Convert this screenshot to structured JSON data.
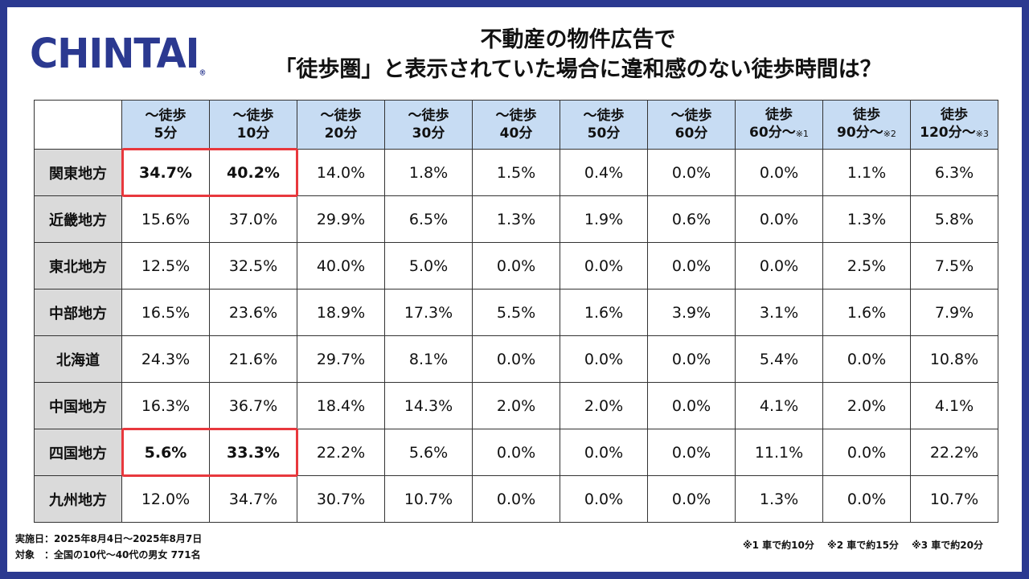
{
  "brand": {
    "logo_text": "CHINTAI",
    "logo_mark": "®",
    "color": "#2b3990"
  },
  "title": {
    "line1": "不動産の物件広告で",
    "line2": "「徒歩圏」と表示されていた場合に違和感のない徒歩時間は？"
  },
  "accent_colors": {
    "header_bg": "#c7dcf3",
    "region_bg": "#dadada",
    "highlight": "#e8383d"
  },
  "chart_data": {
    "type": "table",
    "columns": [
      {
        "line1": "〜徒歩",
        "line2": "5分",
        "note": ""
      },
      {
        "line1": "〜徒歩",
        "line2": "10分",
        "note": ""
      },
      {
        "line1": "〜徒歩",
        "line2": "20分",
        "note": ""
      },
      {
        "line1": "〜徒歩",
        "line2": "30分",
        "note": ""
      },
      {
        "line1": "〜徒歩",
        "line2": "40分",
        "note": ""
      },
      {
        "line1": "〜徒歩",
        "line2": "50分",
        "note": ""
      },
      {
        "line1": "〜徒歩",
        "line2": "60分",
        "note": ""
      },
      {
        "line1": "徒歩",
        "line2": "60分〜",
        "note": "※1"
      },
      {
        "line1": "徒歩",
        "line2": "90分〜",
        "note": "※2"
      },
      {
        "line1": "徒歩",
        "line2": "120分〜",
        "note": "※3"
      }
    ],
    "rows": [
      {
        "region": "関東地方",
        "values": [
          "34.7%",
          "40.2%",
          "14.0%",
          "1.8%",
          "1.5%",
          "0.4%",
          "0.0%",
          "0.0%",
          "1.1%",
          "6.3%"
        ],
        "highlight": [
          0,
          1
        ]
      },
      {
        "region": "近畿地方",
        "values": [
          "15.6%",
          "37.0%",
          "29.9%",
          "6.5%",
          "1.3%",
          "1.9%",
          "0.6%",
          "0.0%",
          "1.3%",
          "5.8%"
        ],
        "highlight": []
      },
      {
        "region": "東北地方",
        "values": [
          "12.5%",
          "32.5%",
          "40.0%",
          "5.0%",
          "0.0%",
          "0.0%",
          "0.0%",
          "0.0%",
          "2.5%",
          "7.5%"
        ],
        "highlight": []
      },
      {
        "region": "中部地方",
        "values": [
          "16.5%",
          "23.6%",
          "18.9%",
          "17.3%",
          "5.5%",
          "1.6%",
          "3.9%",
          "3.1%",
          "1.6%",
          "7.9%"
        ],
        "highlight": []
      },
      {
        "region": "北海道",
        "values": [
          "24.3%",
          "21.6%",
          "29.7%",
          "8.1%",
          "0.0%",
          "0.0%",
          "0.0%",
          "5.4%",
          "0.0%",
          "10.8%"
        ],
        "highlight": []
      },
      {
        "region": "中国地方",
        "values": [
          "16.3%",
          "36.7%",
          "18.4%",
          "14.3%",
          "2.0%",
          "2.0%",
          "0.0%",
          "4.1%",
          "2.0%",
          "4.1%"
        ],
        "highlight": []
      },
      {
        "region": "四国地方",
        "values": [
          "5.6%",
          "33.3%",
          "22.2%",
          "5.6%",
          "0.0%",
          "0.0%",
          "0.0%",
          "11.1%",
          "0.0%",
          "22.2%"
        ],
        "highlight": [
          0,
          1
        ]
      },
      {
        "region": "九州地方",
        "values": [
          "12.0%",
          "34.7%",
          "30.7%",
          "10.7%",
          "0.0%",
          "0.0%",
          "0.0%",
          "1.3%",
          "0.0%",
          "10.7%"
        ],
        "highlight": []
      }
    ]
  },
  "footer": {
    "survey_period": "実施日：2025年8月4日〜2025年8月7日",
    "target": "対象　：全国の10代〜40代の男女 771名",
    "notes": "※1 車で約10分　 ※2 車で約15分　 ※3 車で約20分"
  }
}
